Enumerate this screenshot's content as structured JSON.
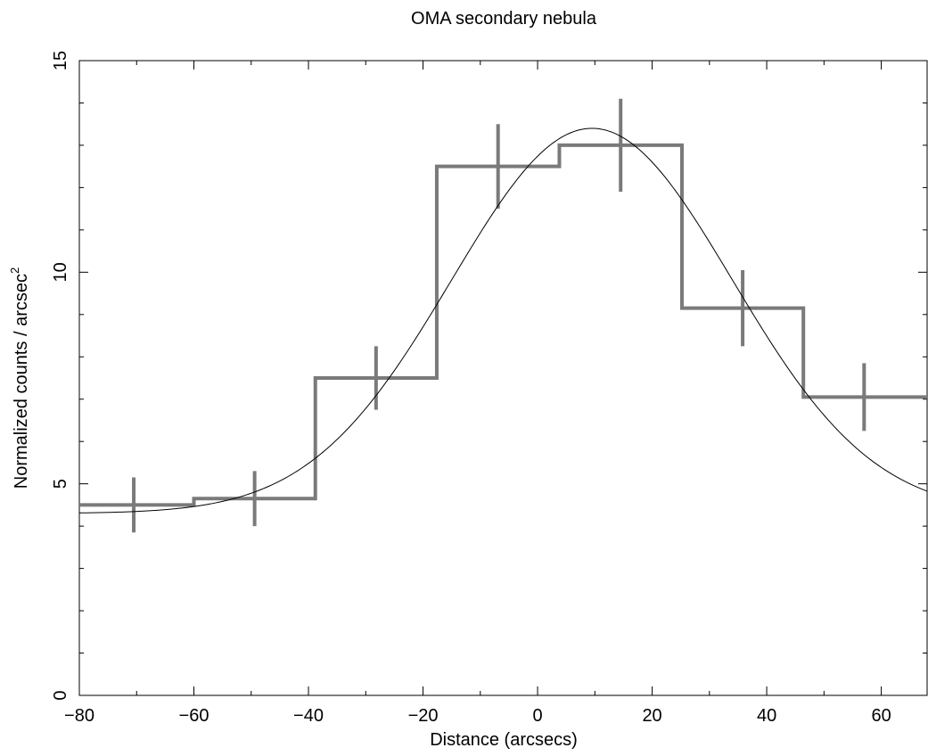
{
  "chart_data": {
    "type": "line",
    "title": "OMA secondary nebula",
    "xlabel": "Distance (arcsecs)",
    "ylabel": "Normalized counts / arcsec",
    "ylabel_superscript": "2",
    "xlim": [
      -80,
      68
    ],
    "ylim": [
      0,
      15
    ],
    "x_ticks": [
      -80,
      -60,
      -40,
      -20,
      0,
      20,
      40,
      60
    ],
    "y_ticks": [
      0,
      5,
      10,
      15
    ],
    "grid": false,
    "legend": "none",
    "histogram_color": "#7a7a7a",
    "fit_color": "#000000",
    "histogram": {
      "bins": [
        {
          "x0": -80.0,
          "x1": -60.0,
          "center": -70.5,
          "y": 4.5,
          "err": 0.65
        },
        {
          "x0": -60.0,
          "x1": -38.8,
          "center": -49.4,
          "y": 4.65,
          "err": 0.65
        },
        {
          "x0": -38.8,
          "x1": -17.6,
          "center": -28.2,
          "y": 7.5,
          "err": 0.75
        },
        {
          "x0": -17.6,
          "x1": 3.8,
          "center": -6.9,
          "y": 12.5,
          "err": 1.0
        },
        {
          "x0": 3.8,
          "x1": 25.2,
          "center": 14.5,
          "y": 13.0,
          "err": 1.1
        },
        {
          "x0": 25.2,
          "x1": 46.4,
          "center": 35.8,
          "y": 9.15,
          "err": 0.9
        },
        {
          "x0": 46.4,
          "x1": 68.0,
          "center": 57.0,
          "y": 7.05,
          "err": 0.8
        }
      ]
    },
    "fit": {
      "model": "gaussian",
      "baseline": 4.3,
      "amplitude": 9.1,
      "mean": 9.5,
      "sigma": 24.5
    }
  }
}
